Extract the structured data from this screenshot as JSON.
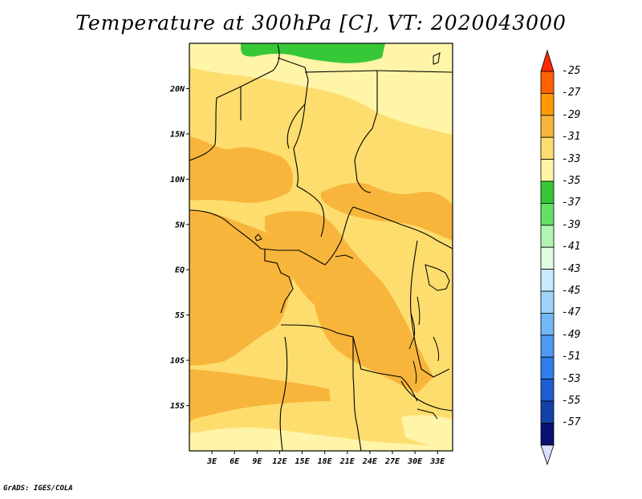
{
  "title": "Temperature at 300hPa [C], VT: 2020043000",
  "credit": "GrADS: IGES/COLA",
  "map": {
    "lon_range": [
      0,
      35
    ],
    "lat_range": [
      -20,
      25
    ],
    "lat_ticks": [
      {
        "value": 20,
        "label": "20N"
      },
      {
        "value": 15,
        "label": "15N"
      },
      {
        "value": 10,
        "label": "10N"
      },
      {
        "value": 5,
        "label": "5N"
      },
      {
        "value": 0,
        "label": "EQ"
      },
      {
        "value": -5,
        "label": "5S"
      },
      {
        "value": -10,
        "label": "10S"
      },
      {
        "value": -15,
        "label": "15S"
      }
    ],
    "lon_ticks": [
      {
        "value": 3,
        "label": "3E"
      },
      {
        "value": 6,
        "label": "6E"
      },
      {
        "value": 9,
        "label": "9E"
      },
      {
        "value": 12,
        "label": "12E"
      },
      {
        "value": 15,
        "label": "15E"
      },
      {
        "value": 18,
        "label": "18E"
      },
      {
        "value": 21,
        "label": "21E"
      },
      {
        "value": 24,
        "label": "24E"
      },
      {
        "value": 27,
        "label": "27E"
      },
      {
        "value": 30,
        "label": "30E"
      },
      {
        "value": 33,
        "label": "33E"
      }
    ]
  },
  "colorbar": {
    "levels": [
      {
        "label": "-25",
        "color": "#ff6000"
      },
      {
        "label": "-27",
        "color": "#ff9a00"
      },
      {
        "label": "-29",
        "color": "#f7b53b"
      },
      {
        "label": "-31",
        "color": "#fddd6d"
      },
      {
        "label": "-33",
        "color": "#fff5a8"
      },
      {
        "label": "-35",
        "color": "#37c837"
      },
      {
        "label": "-37",
        "color": "#64e164"
      },
      {
        "label": "-39",
        "color": "#b3f4b3"
      },
      {
        "label": "-41",
        "color": "#e1fde1"
      },
      {
        "label": "-43",
        "color": "#c7ebfd"
      },
      {
        "label": "-45",
        "color": "#a1d2f8"
      },
      {
        "label": "-47",
        "color": "#72b8f6"
      },
      {
        "label": "-49",
        "color": "#4d9af1"
      },
      {
        "label": "-51",
        "color": "#2f7de9"
      },
      {
        "label": "-53",
        "color": "#1e5ed2"
      },
      {
        "label": "-55",
        "color": "#1441a8"
      },
      {
        "label": "-57",
        "color": "#0b0f72"
      }
    ],
    "top_cap_color": "#ff2a00",
    "bottom_cap_color": "#dce0fd"
  }
}
